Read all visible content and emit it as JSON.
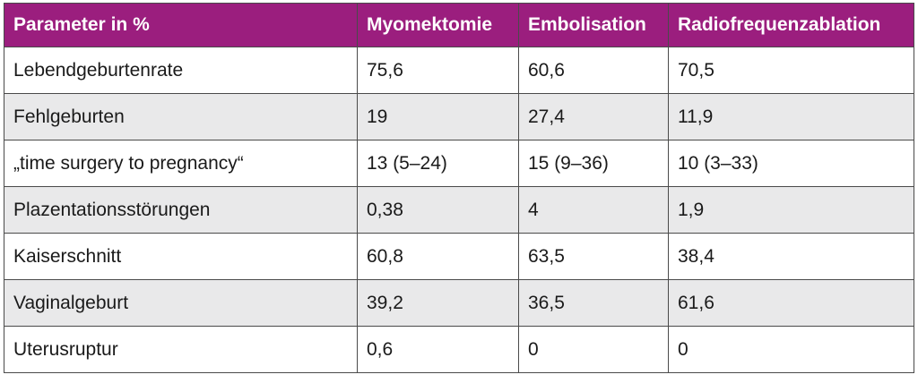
{
  "colors": {
    "header_bg": "#9b1e7e",
    "header_text": "#ffffff",
    "row_alt_bg": "#e9e9ea",
    "row_bg": "#ffffff",
    "border": "#4a4a4a"
  },
  "table": {
    "headers": [
      "Parameter in %",
      "Myomektomie",
      "Embolisation",
      "Radiofrequenzablation"
    ],
    "rows": [
      [
        "Lebendgeburtenrate",
        "75,6",
        "60,6",
        "70,5"
      ],
      [
        "Fehlgeburten",
        "19",
        "27,4",
        "11,9"
      ],
      [
        "„time surgery to pregnancy“",
        "13 (5–24)",
        "15 (9–36)",
        "10 (3–33)"
      ],
      [
        "Plazentationsstörungen",
        "0,38",
        "4",
        "1,9"
      ],
      [
        "Kaiserschnitt",
        "60,8",
        "63,5",
        "38,4"
      ],
      [
        "Vaginalgeburt",
        "39,2",
        "36,5",
        "61,6"
      ],
      [
        "Uterusruptur",
        "0,6",
        "0",
        "0"
      ]
    ]
  }
}
